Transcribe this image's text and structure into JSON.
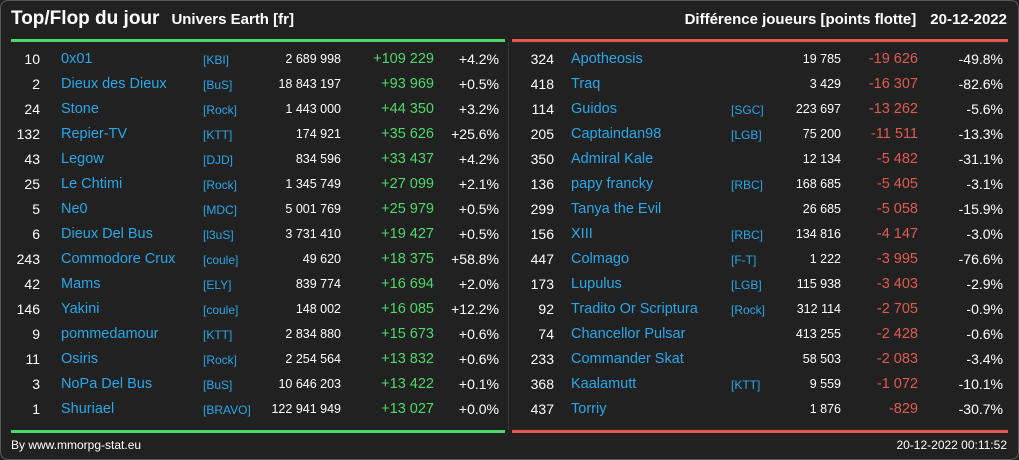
{
  "header": {
    "title": "Top/Flop du jour",
    "universe": "Univers Earth [fr]",
    "subtitle": "Différence joueurs [points flotte]",
    "date": "20-12-2022"
  },
  "colors": {
    "positive": "#4fd86a",
    "negative": "#e05a4f",
    "link": "#29a7e8",
    "background": "#212121"
  },
  "top": [
    {
      "rank": "10",
      "name": "0x01",
      "tag": "[KBI]",
      "points": "2 689 998",
      "diff": "+109 229",
      "pct": "+4.2%"
    },
    {
      "rank": "2",
      "name": "Dieux des Dieux",
      "tag": "[BuS]",
      "points": "18 843 197",
      "diff": "+93 969",
      "pct": "+0.5%"
    },
    {
      "rank": "24",
      "name": "Stone",
      "tag": "[Rock]",
      "points": "1 443 000",
      "diff": "+44 350",
      "pct": "+3.2%"
    },
    {
      "rank": "132",
      "name": "Repier-TV",
      "tag": "[KTT]",
      "points": "174 921",
      "diff": "+35 626",
      "pct": "+25.6%"
    },
    {
      "rank": "43",
      "name": "Legow",
      "tag": "[DJD]",
      "points": "834 596",
      "diff": "+33 437",
      "pct": "+4.2%"
    },
    {
      "rank": "25",
      "name": "Le Chtimi",
      "tag": "[Rock]",
      "points": "1 345 749",
      "diff": "+27 099",
      "pct": "+2.1%"
    },
    {
      "rank": "5",
      "name": "Ne0",
      "tag": "[MDC]",
      "points": "5 001 769",
      "diff": "+25 979",
      "pct": "+0.5%"
    },
    {
      "rank": "6",
      "name": "Dieux Del Bus",
      "tag": "[l3uS]",
      "points": "3 731 410",
      "diff": "+19 427",
      "pct": "+0.5%"
    },
    {
      "rank": "243",
      "name": "Commodore Crux",
      "tag": "[coule]",
      "points": "49 620",
      "diff": "+18 375",
      "pct": "+58.8%"
    },
    {
      "rank": "42",
      "name": "Mams",
      "tag": "[ELY]",
      "points": "839 774",
      "diff": "+16 694",
      "pct": "+2.0%"
    },
    {
      "rank": "146",
      "name": "Yakini",
      "tag": "[coule]",
      "points": "148 002",
      "diff": "+16 085",
      "pct": "+12.2%"
    },
    {
      "rank": "9",
      "name": "pommedamour",
      "tag": "[KTT]",
      "points": "2 834 880",
      "diff": "+15 673",
      "pct": "+0.6%"
    },
    {
      "rank": "11",
      "name": "Osiris",
      "tag": "[Rock]",
      "points": "2 254 564",
      "diff": "+13 832",
      "pct": "+0.6%"
    },
    {
      "rank": "3",
      "name": "NoPa Del Bus",
      "tag": "[BuS]",
      "points": "10 646 203",
      "diff": "+13 422",
      "pct": "+0.1%"
    },
    {
      "rank": "1",
      "name": "Shuriael",
      "tag": "[BRAVO]",
      "points": "122 941 949",
      "diff": "+13 027",
      "pct": "+0.0%"
    }
  ],
  "flop": [
    {
      "rank": "324",
      "name": "Apotheosis",
      "tag": "",
      "points": "19 785",
      "diff": "-19 626",
      "pct": "-49.8%"
    },
    {
      "rank": "418",
      "name": "Traq",
      "tag": "",
      "points": "3 429",
      "diff": "-16 307",
      "pct": "-82.6%"
    },
    {
      "rank": "114",
      "name": "Guidos",
      "tag": "[SGC]",
      "points": "223 697",
      "diff": "-13 262",
      "pct": "-5.6%"
    },
    {
      "rank": "205",
      "name": "Captaindan98",
      "tag": "[LGB]",
      "points": "75 200",
      "diff": "-11 511",
      "pct": "-13.3%"
    },
    {
      "rank": "350",
      "name": "Admiral Kale",
      "tag": "",
      "points": "12 134",
      "diff": "-5 482",
      "pct": "-31.1%"
    },
    {
      "rank": "136",
      "name": "papy francky",
      "tag": "[RBC]",
      "points": "168 685",
      "diff": "-5 405",
      "pct": "-3.1%"
    },
    {
      "rank": "299",
      "name": "Tanya the Evil",
      "tag": "",
      "points": "26 685",
      "diff": "-5 058",
      "pct": "-15.9%"
    },
    {
      "rank": "156",
      "name": "XIII",
      "tag": "[RBC]",
      "points": "134 816",
      "diff": "-4 147",
      "pct": "-3.0%"
    },
    {
      "rank": "447",
      "name": "Colmago",
      "tag": "[F-T]",
      "points": "1 222",
      "diff": "-3 995",
      "pct": "-76.6%"
    },
    {
      "rank": "173",
      "name": "Lupulus",
      "tag": "[LGB]",
      "points": "115 938",
      "diff": "-3 403",
      "pct": "-2.9%"
    },
    {
      "rank": "92",
      "name": "Tradito Or Scriptura",
      "tag": "[Rock]",
      "points": "312 114",
      "diff": "-2 705",
      "pct": "-0.9%"
    },
    {
      "rank": "74",
      "name": "Chancellor Pulsar",
      "tag": "",
      "points": "413 255",
      "diff": "-2 428",
      "pct": "-0.6%"
    },
    {
      "rank": "233",
      "name": "Commander Skat",
      "tag": "",
      "points": "58 503",
      "diff": "-2 083",
      "pct": "-3.4%"
    },
    {
      "rank": "368",
      "name": "Kaalamutt",
      "tag": "[KTT]",
      "points": "9 559",
      "diff": "-1 072",
      "pct": "-10.1%"
    },
    {
      "rank": "437",
      "name": "Torriy",
      "tag": "",
      "points": "1 876",
      "diff": "-829",
      "pct": "-30.7%"
    }
  ],
  "footer": {
    "credit": "By www.mmorpg-stat.eu",
    "timestamp": "20-12-2022 00:11:52"
  }
}
